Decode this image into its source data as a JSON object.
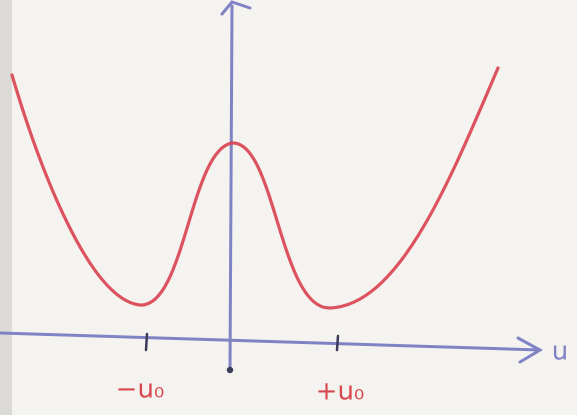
{
  "axis": {
    "label": "u"
  },
  "ticks": {
    "minus": "−u₀",
    "plus": "+u₀"
  }
}
